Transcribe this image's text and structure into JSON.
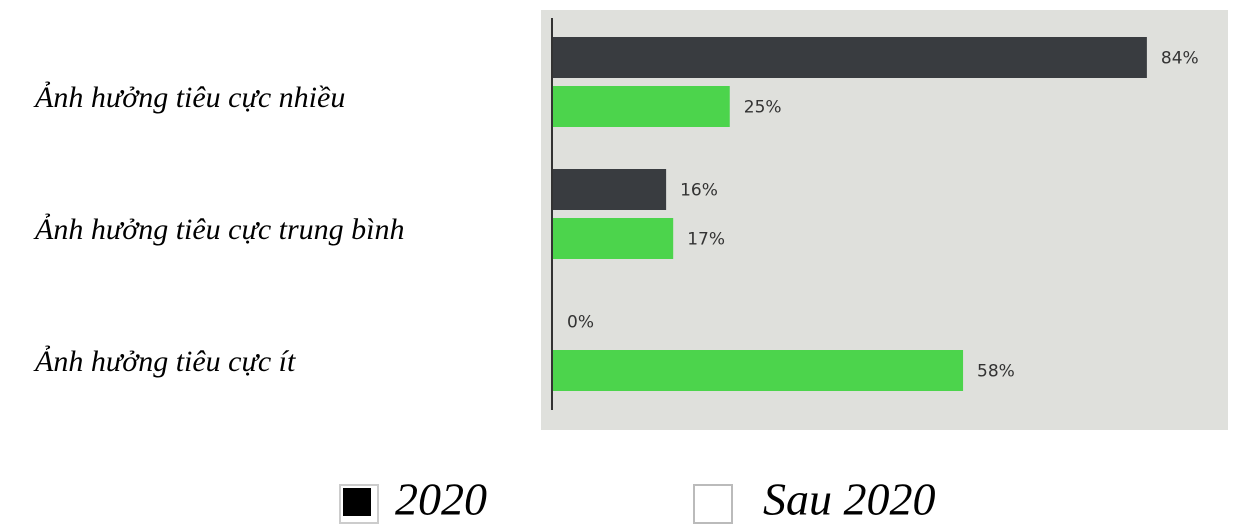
{
  "chart_data": {
    "type": "bar",
    "orientation": "horizontal",
    "categories": [
      "Ảnh hưởng tiêu cực nhiều",
      "Ảnh hưởng tiêu cực trung bình",
      "Ảnh hưởng tiêu cực ít"
    ],
    "series": [
      {
        "name": "2020",
        "color": "#393c40",
        "values": [
          84,
          16,
          0
        ],
        "value_labels": [
          "84%",
          "16%",
          "0%"
        ]
      },
      {
        "name": "Sau 2020",
        "color": "#4cd44c",
        "values": [
          25,
          17,
          58
        ],
        "value_labels": [
          "25%",
          "17%",
          "58%"
        ]
      }
    ],
    "xlim": [
      0,
      100
    ]
  }
}
